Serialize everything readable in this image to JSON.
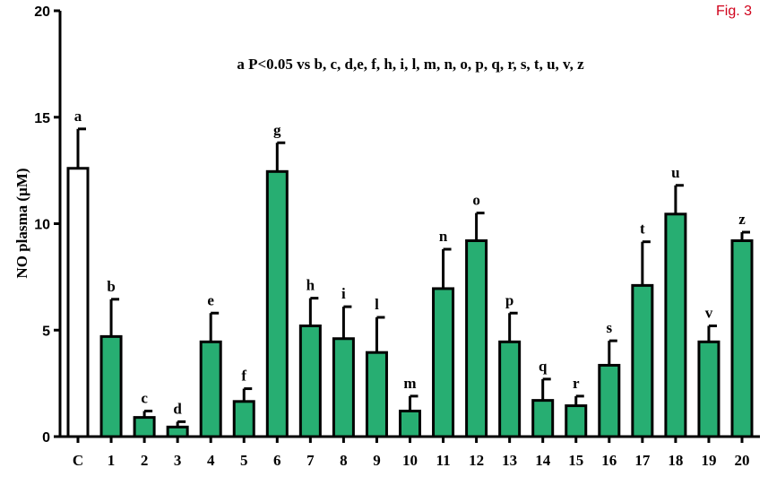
{
  "figure_label": "Fig. 3",
  "chart_data": {
    "type": "bar",
    "ylabel": "NO plasma (µM)",
    "annotation": "a P<0.05 vs b, c, d,e, f, h, i, l, m, n, o, p, q, r, s, t, u, v, z",
    "ylim": [
      0,
      20
    ],
    "yticks": [
      0,
      5,
      10,
      15,
      20
    ],
    "grid": false,
    "colors": {
      "control": "#ffffff",
      "treatment": "#27ae72",
      "stroke": "#000000"
    },
    "categories": [
      "C",
      "1",
      "2",
      "3",
      "4",
      "5",
      "6",
      "7",
      "8",
      "9",
      "10",
      "11",
      "12",
      "13",
      "14",
      "15",
      "16",
      "17",
      "18",
      "19",
      "20"
    ],
    "values": [
      12.6,
      4.7,
      0.9,
      0.45,
      4.45,
      1.65,
      12.45,
      5.2,
      4.6,
      3.95,
      1.2,
      6.95,
      9.2,
      4.45,
      1.7,
      1.45,
      3.35,
      7.1,
      10.45,
      4.45,
      9.2
    ],
    "errors": [
      1.85,
      1.75,
      0.3,
      0.25,
      1.35,
      0.6,
      1.35,
      1.3,
      1.5,
      1.65,
      0.7,
      1.85,
      1.3,
      1.35,
      1.0,
      0.45,
      1.15,
      2.05,
      1.35,
      0.75,
      0.4
    ],
    "letters": [
      "a",
      "b",
      "c",
      "d",
      "e",
      "f",
      "g",
      "h",
      "i",
      "l",
      "m",
      "n",
      "o",
      "p",
      "q",
      "r",
      "s",
      "t",
      "u",
      "v",
      "z"
    ]
  }
}
